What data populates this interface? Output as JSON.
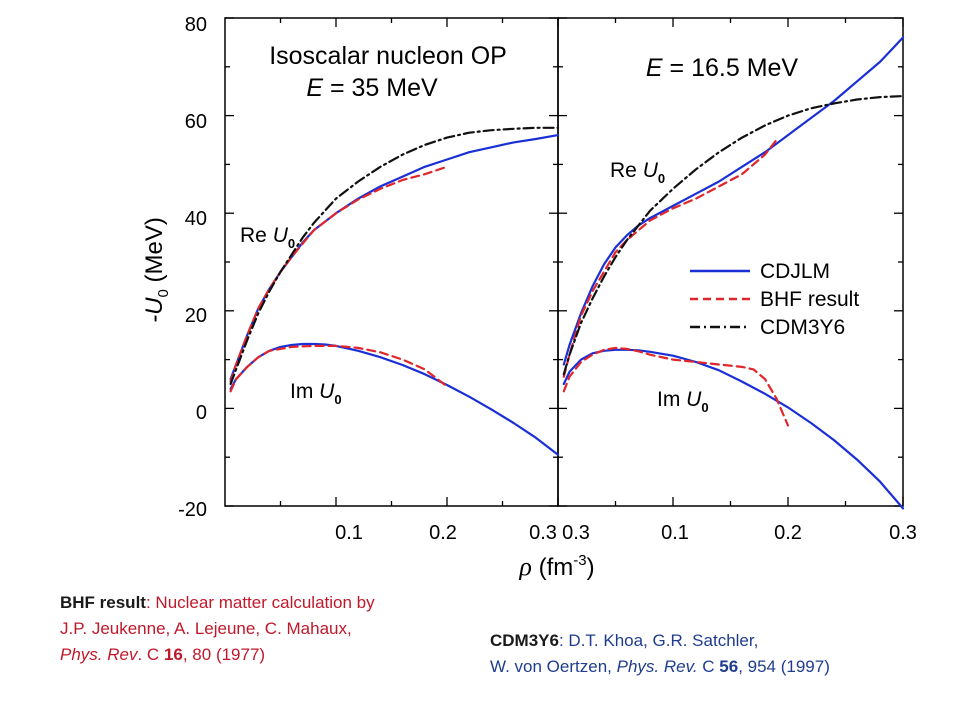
{
  "chart_data": {
    "type": "line",
    "y_axis": {
      "label_prefix": "-U",
      "label_sub": "0",
      "label_unit": "(MeV)",
      "ylim": [
        -20,
        80
      ],
      "ticks": [
        "-20",
        "0",
        "20",
        "40",
        "60",
        "80"
      ]
    },
    "x_axis": {
      "label_symbol": "ρ",
      "label_unit_pre": "(fm",
      "label_sup": "-3",
      "label_unit_post": ")"
    },
    "legend": {
      "placement": "right-middle",
      "entries": [
        {
          "name": "CDJLM",
          "color": "#1a2fd6",
          "dash": "solid"
        },
        {
          "name": "BHF result",
          "color": "#e0262a",
          "dash": "dashed"
        },
        {
          "name": "CDM3Y6",
          "color": "#111111",
          "dash": "dashdot"
        }
      ]
    },
    "panels": [
      {
        "title_line1": "Isoscalar nucleon OP",
        "title_line2_sym": "E",
        "title_line2_rest": " = 35 MeV",
        "xlim": [
          0,
          0.3
        ],
        "xticks": [
          "0.1",
          "0.2",
          "0.3"
        ],
        "labels": {
          "re_pre": "Re ",
          "re_sym": "U",
          "re_sub": "0",
          "im_pre": "Im ",
          "im_sym": "U",
          "im_sub": "0"
        },
        "series": [
          {
            "name": "CDJLM",
            "component": "Re",
            "x": [
              0.005,
              0.01,
              0.02,
              0.03,
              0.04,
              0.05,
              0.06,
              0.07,
              0.08,
              0.1,
              0.12,
              0.14,
              0.16,
              0.18,
              0.2,
              0.22,
              0.24,
              0.26,
              0.28,
              0.3
            ],
            "y": [
              6,
              9,
              15,
              20.5,
              24.5,
              28,
              31,
              34,
              36.5,
              40,
              43,
              45.5,
              47.5,
              49.5,
              51,
              52.5,
              53.5,
              54.5,
              55.2,
              56
            ]
          },
          {
            "name": "BHF result",
            "component": "Re",
            "x": [
              0.005,
              0.01,
              0.02,
              0.03,
              0.04,
              0.05,
              0.06,
              0.07,
              0.08,
              0.1,
              0.12,
              0.14,
              0.16,
              0.18,
              0.2
            ],
            "y": [
              5.5,
              9,
              15,
              20.5,
              24.5,
              28,
              31,
              33.8,
              36.5,
              40,
              42.8,
              45,
              46.8,
              48,
              49.5
            ]
          },
          {
            "name": "CDM3Y6",
            "component": "Re",
            "x": [
              0.005,
              0.01,
              0.02,
              0.03,
              0.04,
              0.05,
              0.06,
              0.07,
              0.08,
              0.1,
              0.12,
              0.14,
              0.16,
              0.18,
              0.2,
              0.22,
              0.24,
              0.26,
              0.28,
              0.3
            ],
            "y": [
              5,
              8,
              14,
              19.5,
              24,
              28,
              31.5,
              35,
              38,
              43,
              46.5,
              49.5,
              52,
              54,
              55.5,
              56.5,
              57,
              57.3,
              57.5,
              57.5
            ]
          },
          {
            "name": "CDJLM",
            "component": "Im",
            "x": [
              0.005,
              0.01,
              0.02,
              0.03,
              0.04,
              0.05,
              0.06,
              0.07,
              0.08,
              0.09,
              0.1,
              0.12,
              0.14,
              0.16,
              0.18,
              0.2,
              0.22,
              0.24,
              0.26,
              0.28,
              0.3
            ],
            "y": [
              4,
              6,
              8.5,
              10.5,
              11.8,
              12.6,
              13,
              13.2,
              13.2,
              13.1,
              12.8,
              11.8,
              10.5,
              8.9,
              7,
              4.8,
              2.4,
              -0.2,
              -3,
              -6,
              -9.5
            ]
          },
          {
            "name": "BHF result",
            "component": "Im",
            "x": [
              0.005,
              0.01,
              0.02,
              0.03,
              0.04,
              0.06,
              0.08,
              0.1,
              0.12,
              0.14,
              0.16,
              0.18,
              0.2
            ],
            "y": [
              3.5,
              6,
              8.5,
              10.5,
              11.8,
              12.6,
              12.8,
              12.8,
              12.4,
              11.5,
              10,
              8,
              4.5
            ]
          }
        ]
      },
      {
        "title_line1": "",
        "title_line2_sym": "E",
        "title_line2_rest": " = 16.5 MeV",
        "xlim": [
          0,
          0.3
        ],
        "xticks": [
          "0.3",
          "0.1",
          "0.2",
          "0.3"
        ],
        "labels": {
          "re_pre": "Re ",
          "re_sym": "U",
          "re_sub": "0",
          "im_pre": "Im ",
          "im_sym": "U",
          "im_sub": "0"
        },
        "series": [
          {
            "name": "CDJLM",
            "component": "Re",
            "x": [
              0.005,
              0.01,
              0.02,
              0.03,
              0.04,
              0.05,
              0.06,
              0.07,
              0.08,
              0.1,
              0.12,
              0.14,
              0.16,
              0.18,
              0.2,
              0.22,
              0.24,
              0.26,
              0.28,
              0.3
            ],
            "y": [
              9,
              13,
              19.5,
              25,
              29.5,
              33,
              35.5,
              37.5,
              39,
              41.5,
              44,
              46.5,
              49.5,
              52.5,
              56,
              59.5,
              63,
              67,
              71,
              76
            ]
          },
          {
            "name": "BHF result",
            "component": "Re",
            "x": [
              0.005,
              0.01,
              0.02,
              0.03,
              0.04,
              0.05,
              0.06,
              0.07,
              0.08,
              0.1,
              0.12,
              0.14,
              0.16,
              0.18,
              0.19
            ],
            "y": [
              6.5,
              11,
              19,
              24,
              28,
              32,
              34.5,
              36.5,
              38.5,
              41,
              43,
              45.5,
              48,
              52,
              55
            ]
          },
          {
            "name": "CDM3Y6",
            "component": "Re",
            "x": [
              0.005,
              0.01,
              0.02,
              0.03,
              0.04,
              0.05,
              0.06,
              0.07,
              0.08,
              0.1,
              0.12,
              0.14,
              0.16,
              0.18,
              0.2,
              0.22,
              0.24,
              0.26,
              0.28,
              0.3
            ],
            "y": [
              7,
              11,
              17.5,
              22.5,
              27,
              31,
              34.5,
              37.5,
              40.5,
              45,
              49,
              52.5,
              55.5,
              58,
              60,
              61.5,
              62.5,
              63.3,
              63.8,
              64
            ]
          },
          {
            "name": "CDJLM",
            "component": "Im",
            "x": [
              0.005,
              0.01,
              0.02,
              0.03,
              0.04,
              0.05,
              0.06,
              0.07,
              0.08,
              0.1,
              0.12,
              0.14,
              0.16,
              0.18,
              0.2,
              0.22,
              0.24,
              0.26,
              0.28,
              0.3
            ],
            "y": [
              5,
              7.5,
              10,
              11.3,
              11.8,
              12,
              12,
              11.9,
              11.6,
              10.8,
              9.5,
              7.8,
              5.5,
              3,
              0.2,
              -3,
              -6.5,
              -10.5,
              -15,
              -20.5
            ]
          },
          {
            "name": "BHF result",
            "component": "Im",
            "x": [
              0.005,
              0.01,
              0.02,
              0.03,
              0.04,
              0.05,
              0.06,
              0.07,
              0.08,
              0.1,
              0.12,
              0.14,
              0.16,
              0.17,
              0.18,
              0.19,
              0.2
            ],
            "y": [
              3.5,
              6.5,
              9.5,
              11,
              12,
              12.4,
              12.2,
              11.7,
              11,
              10,
              9.5,
              9,
              8.5,
              8,
              6,
              2,
              -3.5
            ]
          }
        ]
      }
    ]
  },
  "annotations": {
    "bhf": {
      "title": "BHF result",
      "line1_rest": ": Nuclear matter calculation by",
      "line2": "J.P. Jeukenne, A. Lejeune, C. Mahaux,",
      "line3_journal": "Phys. Rev",
      "line3_mid": ". C ",
      "line3_vol": "16",
      "line3_end": ", 80 (1977)"
    },
    "cdm": {
      "title": "CDM3Y6",
      "line1_rest": ": D.T. Khoa, G.R. Satchler,",
      "line2_pre": "W. von Oertzen, ",
      "line2_journal": "Phys. Rev.",
      "line2_mid": " C ",
      "line2_vol": "56",
      "line2_end": ", 954 (1997)"
    }
  }
}
